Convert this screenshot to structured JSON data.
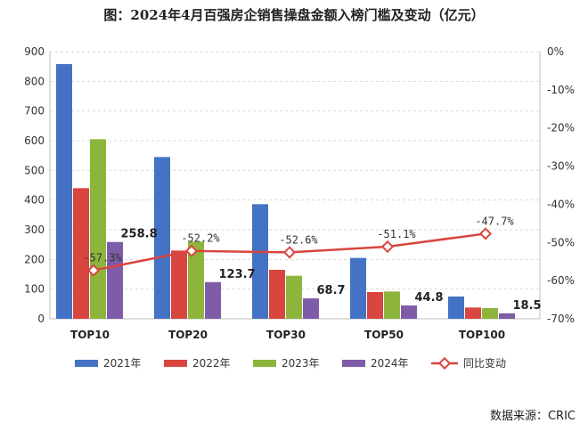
{
  "title": "图：2024年4月百强房企销售操盘金额入榜门槛及变动（亿元）",
  "source": "数据来源：CRIC",
  "chart_data": {
    "type": "bar",
    "categories": [
      "TOP10",
      "TOP20",
      "TOP30",
      "TOP50",
      "TOP100"
    ],
    "series": [
      {
        "name": "2021年",
        "color": "#4472C4",
        "values": [
          858,
          545,
          386,
          205,
          75
        ]
      },
      {
        "name": "2022年",
        "color": "#D9453F",
        "values": [
          440,
          230,
          165,
          90,
          38
        ]
      },
      {
        "name": "2023年",
        "color": "#8DB53C",
        "values": [
          605,
          260,
          145,
          92,
          36
        ]
      },
      {
        "name": "2024年",
        "color": "#7E5CA8",
        "values": [
          258.8,
          123.7,
          68.7,
          44.8,
          18.5
        ]
      }
    ],
    "labeled_series": "2024年",
    "data_labels": [
      "258.8",
      "123.7",
      "68.7",
      "44.8",
      "18.5"
    ],
    "line": {
      "name": "同比变动",
      "color": "#D9453F",
      "values": [
        -57.3,
        -52.2,
        -52.6,
        -51.1,
        -47.7
      ],
      "labels": [
        "-57.3%",
        "-52.2%",
        "-52.6%",
        "-51.1%",
        "-47.7%"
      ]
    },
    "y_left": {
      "min": 0,
      "max": 900,
      "ticks": [
        "0",
        "100",
        "200",
        "300",
        "400",
        "500",
        "600",
        "700",
        "800",
        "900"
      ]
    },
    "y_right": {
      "min": -70,
      "max": 0,
      "ticks": [
        "0%",
        "-10%",
        "-20%",
        "-30%",
        "-40%",
        "-50%",
        "-60%",
        "-70%"
      ]
    },
    "grid": true,
    "legend_position": "bottom"
  }
}
